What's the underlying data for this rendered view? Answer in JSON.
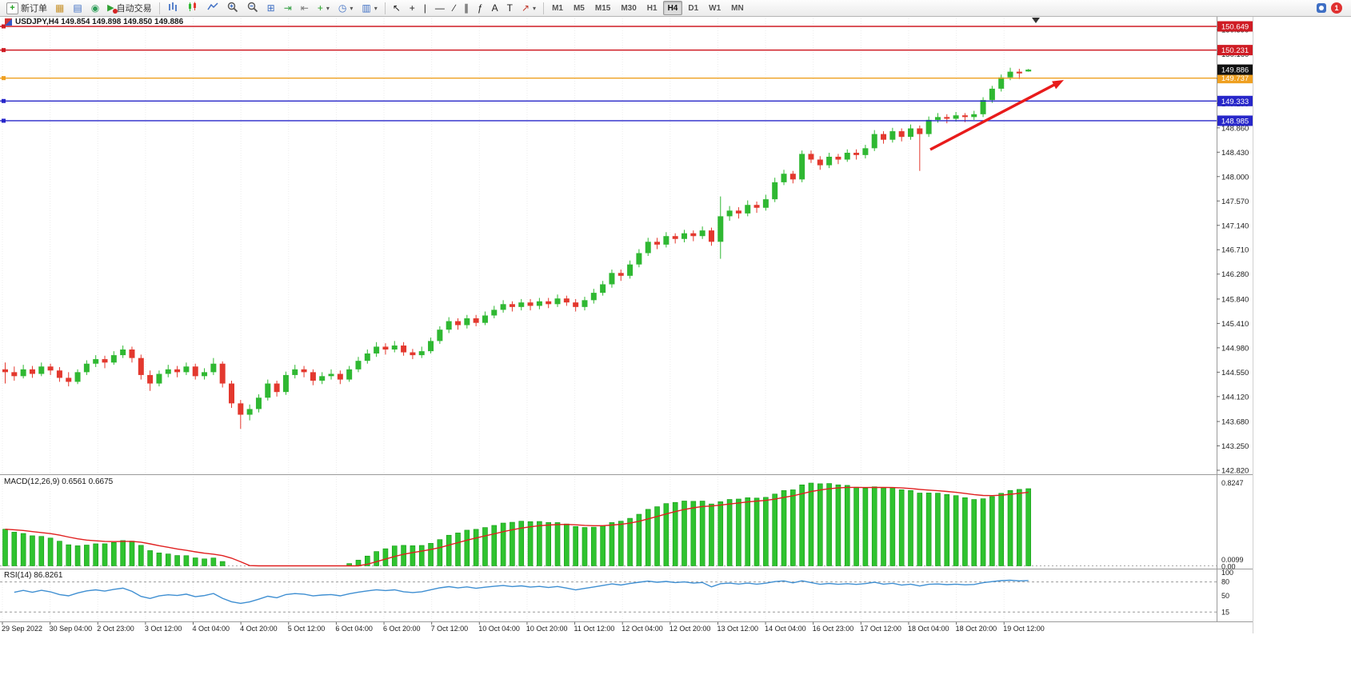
{
  "toolbar": {
    "new_order": "新订单",
    "autotrading": "自动交易",
    "alerts_count": "1",
    "left_icons": [
      {
        "name": "market-watch-icon",
        "glyph": "▦",
        "color": "#c8922a"
      },
      {
        "name": "navigator-icon",
        "glyph": "▤",
        "color": "#3f6fc4"
      },
      {
        "name": "terminal-icon",
        "glyph": "◉",
        "color": "#2f9e5a"
      }
    ],
    "chart_icons": [
      {
        "name": "bar-chart-icon",
        "svg": "bars"
      },
      {
        "name": "candlestick-chart-icon",
        "svg": "candles"
      },
      {
        "name": "line-chart-icon",
        "svg": "line"
      },
      {
        "name": "zoom-in-icon",
        "svg": "zoomin"
      },
      {
        "name": "zoom-out-icon",
        "svg": "zoomout"
      },
      {
        "name": "tile-windows-icon",
        "glyph": "⊞",
        "color": "#3f6fc4"
      },
      {
        "name": "auto-scroll-icon",
        "glyph": "⇥",
        "color": "#2f9e3f"
      },
      {
        "name": "chart-shift-icon",
        "glyph": "⇤",
        "color": "#777777"
      },
      {
        "name": "indicators-icon",
        "glyph": "+",
        "color": "#1e9e1e",
        "dropdown": true
      },
      {
        "name": "periods-icon",
        "glyph": "◷",
        "color": "#3f6fc4",
        "dropdown": true
      },
      {
        "name": "templates-icon",
        "glyph": "▥",
        "color": "#3f6fc4",
        "dropdown": true
      }
    ],
    "line_tools": [
      {
        "name": "cursor-icon",
        "glyph": "↖",
        "color": "#222222"
      },
      {
        "name": "crosshair-icon",
        "glyph": "+",
        "color": "#222222"
      },
      {
        "name": "vertical-line-icon",
        "glyph": "|",
        "color": "#222222"
      },
      {
        "name": "horizontal-line-icon",
        "glyph": "—",
        "color": "#222222"
      },
      {
        "name": "trendline-icon",
        "glyph": "∕",
        "color": "#222222"
      },
      {
        "name": "channel-icon",
        "glyph": "∥",
        "color": "#222222"
      },
      {
        "name": "fibonacci-icon",
        "glyph": "ƒ",
        "color": "#222222"
      },
      {
        "name": "text-icon",
        "glyph": "A",
        "color": "#222222"
      },
      {
        "name": "label-icon",
        "glyph": "T",
        "color": "#222222"
      },
      {
        "name": "arrows-icon",
        "glyph": "↗",
        "color": "#c03a2e",
        "dropdown": true
      }
    ],
    "timeframes": [
      "M1",
      "M5",
      "M15",
      "M30",
      "H1",
      "H4",
      "D1",
      "W1",
      "MN"
    ],
    "active_timeframe": "H4"
  },
  "chart": {
    "title": "USDJPY,H4 149.854 149.898 149.850 149.886"
  },
  "chart_data": {
    "type": "candlestick",
    "symbol": "USDJPY",
    "timeframe": "H4",
    "ohlc_display": "149.854 149.898 149.850 149.886",
    "current_price": "149.886",
    "y_range": [
      142.82,
      150.649
    ],
    "y_axis_labels": [
      "150.590",
      "150.160",
      "149.730",
      "149.290",
      "148.860",
      "148.430",
      "148.000",
      "147.570",
      "147.140",
      "146.710",
      "146.280",
      "145.840",
      "145.410",
      "144.980",
      "144.550",
      "144.120",
      "143.680",
      "143.250",
      "142.820"
    ],
    "x_axis_labels": [
      "29 Sep 2022",
      "30 Sep 04:00",
      "2 Oct 23:00",
      "3 Oct 12:00",
      "4 Oct 04:00",
      "4 Oct 20:00",
      "5 Oct 12:00",
      "6 Oct 04:00",
      "6 Oct 20:00",
      "7 Oct 12:00",
      "10 Oct 04:00",
      "10 Oct 20:00",
      "11 Oct 12:00",
      "12 Oct 04:00",
      "12 Oct 20:00",
      "13 Oct 12:00",
      "14 Oct 04:00",
      "16 Oct 23:00",
      "17 Oct 12:00",
      "18 Oct 04:00",
      "18 Oct 20:00",
      "19 Oct 12:00"
    ],
    "horizontal_levels": [
      {
        "price": "150.649",
        "color": "#cf1c24",
        "type": "resistance"
      },
      {
        "price": "150.231",
        "color": "#cf1c24",
        "type": "resistance"
      },
      {
        "price": "149.737",
        "color": "#efa021",
        "type": "level"
      },
      {
        "price": "149.333",
        "color": "#2726c9",
        "type": "support"
      },
      {
        "price": "148.985",
        "color": "#2726c9",
        "type": "support"
      }
    ],
    "indicators": {
      "macd": {
        "name": "MACD",
        "params": "12,26,9",
        "main_value": "0.6561",
        "signal_value": "0.6675",
        "label": "MACD(12,26,9) 0.6561 0.6675",
        "axis": [
          "0.8247",
          "0.0099",
          "0.00"
        ]
      },
      "rsi": {
        "name": "RSI",
        "params": "14",
        "value": "86.8261",
        "label": "RSI(14) 86.8261",
        "axis": [
          "100",
          "80",
          "50",
          "15"
        ]
      }
    },
    "annotation": {
      "type": "arrow",
      "direction": "up-right",
      "color": "#e81b1b"
    },
    "style": {
      "up_color": "#2fb832",
      "down_color": "#e3382e",
      "macd_color": "#2fc32f",
      "macd_border": "#119911",
      "signal_color": "#e02020",
      "rsi_color": "#3f8fd2",
      "current_badge_color": "#111111"
    },
    "candles": [
      [
        144.6,
        144.72,
        144.35,
        144.55
      ],
      [
        144.55,
        144.65,
        144.4,
        144.48
      ],
      [
        144.48,
        144.68,
        144.44,
        144.6
      ],
      [
        144.6,
        144.66,
        144.45,
        144.52
      ],
      [
        144.52,
        144.72,
        144.48,
        144.65
      ],
      [
        144.65,
        144.7,
        144.5,
        144.58
      ],
      [
        144.58,
        144.64,
        144.38,
        144.45
      ],
      [
        144.45,
        144.55,
        144.3,
        144.38
      ],
      [
        144.38,
        144.6,
        144.34,
        144.55
      ],
      [
        144.55,
        144.76,
        144.5,
        144.7
      ],
      [
        144.7,
        144.85,
        144.64,
        144.78
      ],
      [
        144.78,
        144.84,
        144.62,
        144.72
      ],
      [
        144.72,
        144.92,
        144.68,
        144.85
      ],
      [
        144.85,
        145.02,
        144.8,
        144.95
      ],
      [
        144.95,
        145.0,
        144.72,
        144.8
      ],
      [
        144.8,
        144.86,
        144.42,
        144.5
      ],
      [
        144.5,
        144.58,
        144.22,
        144.35
      ],
      [
        144.35,
        144.58,
        144.3,
        144.52
      ],
      [
        144.52,
        144.68,
        144.46,
        144.6
      ],
      [
        144.6,
        144.66,
        144.46,
        144.55
      ],
      [
        144.55,
        144.72,
        144.5,
        144.65
      ],
      [
        144.65,
        144.7,
        144.42,
        144.48
      ],
      [
        144.48,
        144.62,
        144.42,
        144.55
      ],
      [
        144.55,
        144.8,
        144.5,
        144.7
      ],
      [
        144.7,
        144.74,
        144.28,
        144.35
      ],
      [
        144.35,
        144.4,
        143.92,
        144.0
      ],
      [
        144.0,
        144.06,
        143.55,
        143.8
      ],
      [
        143.8,
        143.98,
        143.7,
        143.9
      ],
      [
        143.9,
        144.16,
        143.84,
        144.1
      ],
      [
        144.1,
        144.42,
        144.05,
        144.35
      ],
      [
        144.35,
        144.4,
        144.12,
        144.2
      ],
      [
        144.2,
        144.56,
        144.15,
        144.5
      ],
      [
        144.5,
        144.68,
        144.44,
        144.6
      ],
      [
        144.6,
        144.66,
        144.46,
        144.55
      ],
      [
        144.55,
        144.6,
        144.32,
        144.4
      ],
      [
        144.4,
        144.55,
        144.34,
        144.48
      ],
      [
        144.48,
        144.6,
        144.42,
        144.52
      ],
      [
        144.52,
        144.58,
        144.34,
        144.42
      ],
      [
        144.42,
        144.66,
        144.38,
        144.6
      ],
      [
        144.6,
        144.82,
        144.55,
        144.75
      ],
      [
        144.75,
        144.95,
        144.7,
        144.88
      ],
      [
        144.88,
        145.08,
        144.82,
        145.0
      ],
      [
        145.0,
        145.06,
        144.86,
        144.95
      ],
      [
        144.95,
        145.1,
        144.9,
        145.02
      ],
      [
        145.02,
        145.08,
        144.84,
        144.9
      ],
      [
        144.9,
        144.96,
        144.78,
        144.85
      ],
      [
        144.85,
        145.0,
        144.8,
        144.92
      ],
      [
        144.92,
        145.16,
        144.88,
        145.1
      ],
      [
        145.1,
        145.36,
        145.05,
        145.3
      ],
      [
        145.3,
        145.52,
        145.24,
        145.45
      ],
      [
        145.45,
        145.5,
        145.3,
        145.38
      ],
      [
        145.38,
        145.56,
        145.32,
        145.5
      ],
      [
        145.5,
        145.56,
        145.36,
        145.42
      ],
      [
        145.42,
        145.62,
        145.38,
        145.55
      ],
      [
        145.55,
        145.72,
        145.5,
        145.65
      ],
      [
        145.65,
        145.82,
        145.6,
        145.75
      ],
      [
        145.75,
        145.8,
        145.62,
        145.7
      ],
      [
        145.7,
        145.84,
        145.64,
        145.78
      ],
      [
        145.78,
        145.84,
        145.64,
        145.72
      ],
      [
        145.72,
        145.86,
        145.66,
        145.8
      ],
      [
        145.8,
        145.86,
        145.68,
        145.75
      ],
      [
        145.75,
        145.92,
        145.7,
        145.85
      ],
      [
        145.85,
        145.9,
        145.72,
        145.78
      ],
      [
        145.78,
        145.84,
        145.62,
        145.7
      ],
      [
        145.7,
        145.88,
        145.64,
        145.82
      ],
      [
        145.82,
        146.02,
        145.76,
        145.95
      ],
      [
        145.95,
        146.16,
        145.9,
        146.1
      ],
      [
        146.1,
        146.36,
        146.04,
        146.3
      ],
      [
        146.3,
        146.36,
        146.16,
        146.25
      ],
      [
        146.25,
        146.52,
        146.2,
        146.45
      ],
      [
        146.45,
        146.72,
        146.4,
        146.65
      ],
      [
        146.65,
        146.92,
        146.6,
        146.85
      ],
      [
        146.85,
        146.92,
        146.72,
        146.8
      ],
      [
        146.8,
        147.02,
        146.75,
        146.95
      ],
      [
        146.95,
        147.0,
        146.82,
        146.9
      ],
      [
        146.9,
        147.06,
        146.84,
        147.0
      ],
      [
        147.0,
        147.05,
        146.86,
        146.95
      ],
      [
        146.95,
        147.12,
        146.9,
        147.05
      ],
      [
        147.05,
        147.1,
        146.78,
        146.85
      ],
      [
        146.85,
        147.65,
        146.55,
        147.3
      ],
      [
        147.3,
        147.48,
        147.22,
        147.4
      ],
      [
        147.4,
        147.46,
        147.26,
        147.35
      ],
      [
        147.35,
        147.58,
        147.3,
        147.5
      ],
      [
        147.5,
        147.56,
        147.36,
        147.45
      ],
      [
        147.45,
        147.68,
        147.4,
        147.6
      ],
      [
        147.6,
        147.98,
        147.55,
        147.9
      ],
      [
        147.9,
        148.12,
        147.85,
        148.05
      ],
      [
        148.05,
        148.1,
        147.88,
        147.95
      ],
      [
        147.95,
        148.46,
        147.9,
        148.4
      ],
      [
        148.4,
        148.46,
        148.24,
        148.3
      ],
      [
        148.3,
        148.36,
        148.12,
        148.2
      ],
      [
        148.2,
        148.42,
        148.15,
        148.35
      ],
      [
        148.35,
        148.4,
        148.22,
        148.3
      ],
      [
        148.3,
        148.48,
        148.26,
        148.42
      ],
      [
        148.42,
        148.48,
        148.3,
        148.38
      ],
      [
        148.38,
        148.56,
        148.32,
        148.5
      ],
      [
        148.5,
        148.82,
        148.45,
        148.75
      ],
      [
        148.75,
        148.8,
        148.58,
        148.65
      ],
      [
        148.65,
        148.86,
        148.6,
        148.8
      ],
      [
        148.8,
        148.85,
        148.62,
        148.7
      ],
      [
        148.7,
        148.92,
        148.65,
        148.85
      ],
      [
        148.85,
        148.9,
        148.1,
        148.75
      ],
      [
        148.75,
        149.06,
        148.7,
        149.0
      ],
      [
        149.0,
        149.12,
        148.95,
        149.05
      ],
      [
        149.05,
        149.1,
        148.94,
        149.02
      ],
      [
        149.02,
        149.14,
        148.97,
        149.08
      ],
      [
        149.08,
        149.12,
        148.96,
        149.05
      ],
      [
        149.05,
        149.16,
        149.0,
        149.1
      ],
      [
        149.1,
        149.4,
        149.05,
        149.35
      ],
      [
        149.35,
        149.6,
        149.3,
        149.55
      ],
      [
        149.55,
        149.8,
        149.5,
        149.75
      ],
      [
        149.75,
        149.92,
        149.7,
        149.85
      ],
      [
        149.85,
        149.9,
        149.72,
        149.82
      ],
      [
        149.854,
        149.898,
        149.85,
        149.886
      ]
    ]
  }
}
